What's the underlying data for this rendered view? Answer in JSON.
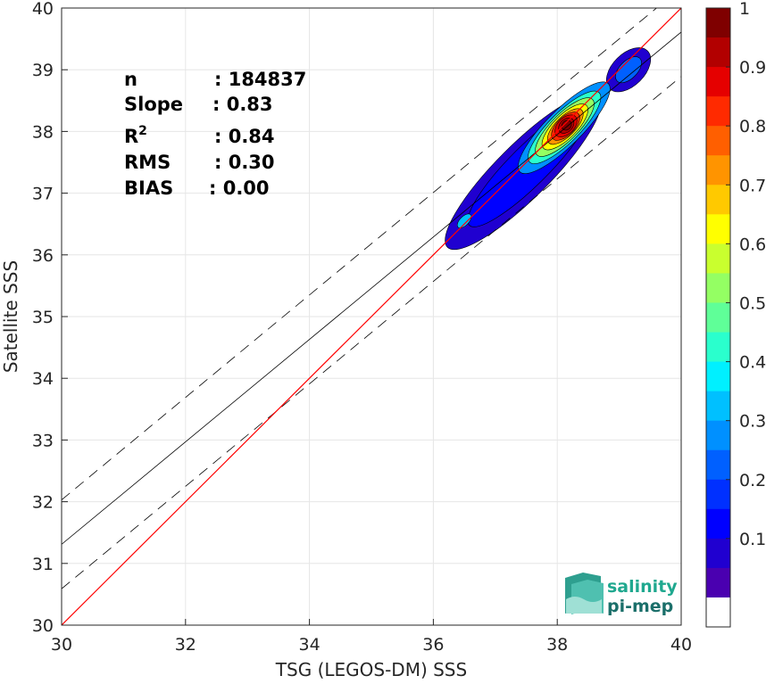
{
  "chart_data": {
    "type": "scatter",
    "subtype": "density-contour",
    "xlabel": "TSG (LEGOS-DM) SSS",
    "ylabel": "Satellite SSS",
    "xlim": [
      30,
      40
    ],
    "ylim": [
      30,
      40
    ],
    "xticks": [
      30,
      32,
      34,
      36,
      38,
      40
    ],
    "yticks": [
      30,
      31,
      32,
      33,
      34,
      35,
      36,
      37,
      38,
      39,
      40
    ],
    "grid": true,
    "stats": [
      {
        "key": "n",
        "value": ": 184837"
      },
      {
        "key": "Slope",
        "value": ": 0.83"
      },
      {
        "key": "R",
        "sup": "2",
        "value": ": 0.84"
      },
      {
        "key": "RMS",
        "value": ": 0.30"
      },
      {
        "key": "BIAS",
        "value": ": 0.00"
      }
    ],
    "identity_line": {
      "color": "#ff0000",
      "x": [
        30,
        40
      ],
      "y": [
        30,
        40
      ]
    },
    "fit_line": {
      "slope": 0.83,
      "intercept": 6.41,
      "color": "#000000"
    },
    "rms_band": {
      "offset": 0.72,
      "style": "dashed"
    },
    "density_peaks": [
      {
        "x": 38.15,
        "y": 38.1,
        "level": 1.0
      },
      {
        "x": 36.5,
        "y": 36.55,
        "level": 0.3
      },
      {
        "x": 39.15,
        "y": 39.0,
        "level": 0.2
      }
    ],
    "colorbar": {
      "ticks": [
        "1",
        "0.9",
        "0.8",
        "0.7",
        "0.6",
        "0.5",
        "0.4",
        "0.3",
        "0.2",
        "0.1"
      ],
      "colors": [
        "#7f0000",
        "#b20000",
        "#e50000",
        "#ff2a00",
        "#ff5f00",
        "#ff9400",
        "#ffc900",
        "#ffff00",
        "#c9ff2e",
        "#94ff63",
        "#5fff98",
        "#2affcd",
        "#00f0ff",
        "#00c0ff",
        "#0090ff",
        "#0060ff",
        "#0030ff",
        "#0000ff",
        "#2000d0",
        "#4a00b0"
      ],
      "floor_color": "#ffffff"
    }
  },
  "logo": {
    "line1": "salinity",
    "line2": "pi-mep"
  }
}
